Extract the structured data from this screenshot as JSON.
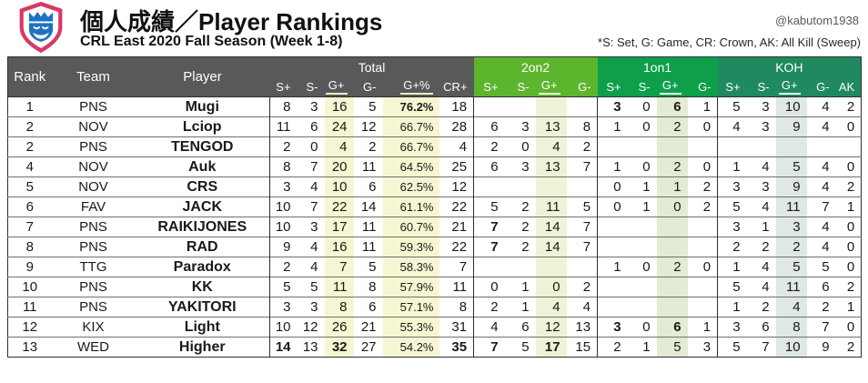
{
  "page": {
    "title": "個人成績／Player Rankings",
    "subtitle": "CRL East 2020 Fall Season (Week 1-8)",
    "handle": "@kabutom1938",
    "footnote": "*S: Set, G: Game, CR: Crown, AK: All Kill (Sweep)"
  },
  "colors": {
    "header_left_bg": "#58595b",
    "group_2on2": "#5cb52d",
    "group_1on1": "#0d9f4a",
    "group_koh": "#1f8a5f",
    "underline_total": "#eeeec0",
    "underline_green": "#ffffff",
    "band_yellow": "#f6f6d2",
    "band_yellowgreen": "#eff3d6",
    "band_green": "#e2ebd3",
    "band_bluegray": "#e0e8e6",
    "logo_pink": "#d63968",
    "logo_blue": "#1e73c0"
  },
  "table": {
    "left_headers": [
      "Rank",
      "Team",
      "Player"
    ],
    "groups": [
      {
        "label": "Total",
        "cols": [
          "S+",
          "S-",
          "G+",
          "G-",
          "G+%",
          "CR+"
        ],
        "bg": "#58595b",
        "underline": [
          2,
          4
        ],
        "underline_color": "#eeeec0"
      },
      {
        "label": "2on2",
        "cols": [
          "S+",
          "S-",
          "G+",
          "G-"
        ],
        "bg": "#5cb52d",
        "underline": [
          2
        ],
        "underline_color": "#ffffff"
      },
      {
        "label": "1on1",
        "cols": [
          "S+",
          "S-",
          "G+",
          "G-"
        ],
        "bg": "#0d9f4a",
        "underline": [
          2
        ],
        "underline_color": "#ffffff"
      },
      {
        "label": "KOH",
        "cols": [
          "S+",
          "S-",
          "G+",
          "G-",
          "AK"
        ],
        "bg": "#1f8a5f",
        "underline": [
          2
        ],
        "underline_color": "#ffffff"
      }
    ],
    "rows": [
      [
        "1",
        "PNS",
        "Mugi",
        "8",
        "3",
        "16",
        "5",
        "76.2%",
        "18",
        "",
        "",
        "",
        "",
        "3",
        "0",
        "6",
        "1",
        "5",
        "3",
        "10",
        "4",
        "2"
      ],
      [
        "2",
        "NOV",
        "Lciop",
        "11",
        "6",
        "24",
        "12",
        "66.7%",
        "28",
        "6",
        "3",
        "13",
        "8",
        "1",
        "0",
        "2",
        "0",
        "4",
        "3",
        "9",
        "4",
        "0"
      ],
      [
        "2",
        "PNS",
        "TENGOD",
        "2",
        "0",
        "4",
        "2",
        "66.7%",
        "4",
        "2",
        "0",
        "4",
        "2",
        "",
        "",
        "",
        "",
        "",
        "",
        "",
        "",
        ""
      ],
      [
        "4",
        "NOV",
        "Auk",
        "8",
        "7",
        "20",
        "11",
        "64.5%",
        "25",
        "6",
        "3",
        "13",
        "7",
        "1",
        "0",
        "2",
        "0",
        "1",
        "4",
        "5",
        "4",
        "0"
      ],
      [
        "5",
        "NOV",
        "CRS",
        "3",
        "4",
        "10",
        "6",
        "62.5%",
        "12",
        "",
        "",
        "",
        "",
        "0",
        "1",
        "1",
        "2",
        "3",
        "3",
        "9",
        "4",
        "2"
      ],
      [
        "6",
        "FAV",
        "JACK",
        "10",
        "7",
        "22",
        "14",
        "61.1%",
        "22",
        "5",
        "2",
        "11",
        "5",
        "0",
        "1",
        "0",
        "2",
        "5",
        "4",
        "11",
        "7",
        "1"
      ],
      [
        "7",
        "PNS",
        "RAIKIJONES",
        "10",
        "3",
        "17",
        "11",
        "60.7%",
        "21",
        "7",
        "2",
        "14",
        "7",
        "",
        "",
        "",
        "",
        "3",
        "1",
        "3",
        "4",
        "0"
      ],
      [
        "8",
        "PNS",
        "RAD",
        "9",
        "4",
        "16",
        "11",
        "59.3%",
        "22",
        "7",
        "2",
        "14",
        "7",
        "",
        "",
        "",
        "",
        "2",
        "2",
        "2",
        "4",
        "0"
      ],
      [
        "9",
        "TTG",
        "Paradox",
        "2",
        "4",
        "7",
        "5",
        "58.3%",
        "7",
        "",
        "",
        "",
        "",
        "1",
        "0",
        "2",
        "0",
        "1",
        "4",
        "5",
        "5",
        "0"
      ],
      [
        "10",
        "PNS",
        "KK",
        "5",
        "5",
        "11",
        "8",
        "57.9%",
        "11",
        "0",
        "1",
        "0",
        "2",
        "",
        "",
        "",
        "",
        "5",
        "4",
        "11",
        "6",
        "2"
      ],
      [
        "11",
        "PNS",
        "YAKITORI",
        "3",
        "3",
        "8",
        "6",
        "57.1%",
        "8",
        "2",
        "1",
        "4",
        "4",
        "",
        "",
        "",
        "",
        "1",
        "2",
        "4",
        "2",
        "1"
      ],
      [
        "12",
        "KIX",
        "Light",
        "10",
        "12",
        "26",
        "21",
        "55.3%",
        "31",
        "4",
        "6",
        "12",
        "13",
        "3",
        "0",
        "6",
        "1",
        "3",
        "6",
        "8",
        "7",
        "0"
      ],
      [
        "13",
        "WED",
        "Higher",
        "14",
        "13",
        "32",
        "27",
        "54.2%",
        "35",
        "7",
        "5",
        "17",
        "15",
        "2",
        "1",
        "5",
        "3",
        "5",
        "7",
        "10",
        "9",
        "2"
      ]
    ],
    "bold_cells": {
      "0": [
        7,
        13,
        15
      ],
      "6": [
        9
      ],
      "7": [
        9
      ],
      "11": [
        13,
        15
      ],
      "12": [
        3,
        5,
        8,
        9,
        11
      ]
    }
  }
}
